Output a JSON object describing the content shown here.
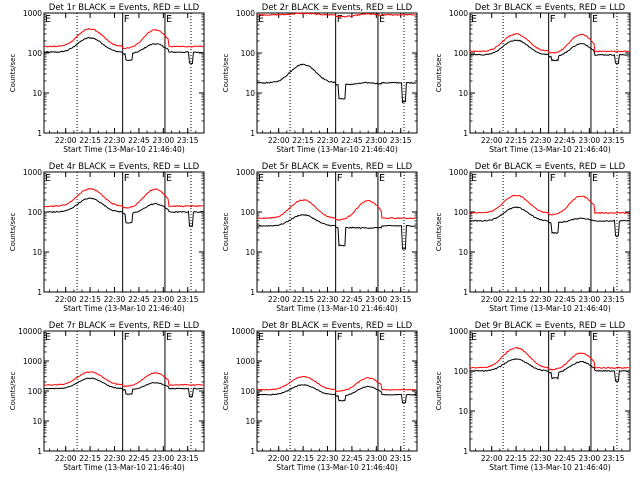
{
  "chart_data": [
    {
      "type": "line",
      "title": "Det 1r BLACK = Events, RED = LLD",
      "ylabel": "Counts/sec",
      "xlabel": "Start Time (13-Mar-10 21:46:40)",
      "x_ticks": [
        "22:00",
        "22:15",
        "22:30",
        "22:45",
        "23:00",
        "23:15"
      ],
      "y_ticks": [
        "1",
        "10",
        "100",
        "1000"
      ],
      "ylim": [
        1,
        1000
      ],
      "y_scale": "log",
      "event_markers": [
        "E",
        "F",
        "E"
      ],
      "series": [
        {
          "name": "Events",
          "color": "#000000",
          "baseline": 105,
          "peak1": 240,
          "peak2": 170,
          "dip": 55
        },
        {
          "name": "LLD",
          "color": "#ff0000",
          "baseline": 145,
          "peak1": 400,
          "peak2": 380
        }
      ]
    },
    {
      "type": "line",
      "title": "Det 2r BLACK = Events, RED = LLD",
      "ylabel": "Counts/sec",
      "xlabel": "Start Time (13-Mar-10 21:46:40)",
      "x_ticks": [
        "22:00",
        "22:15",
        "22:30",
        "22:45",
        "23:00",
        "23:15"
      ],
      "y_ticks": [
        "1",
        "10",
        "100",
        "1000"
      ],
      "ylim": [
        1,
        1000
      ],
      "y_scale": "log",
      "event_markers": [
        "E",
        "F",
        "E"
      ],
      "series": [
        {
          "name": "Events",
          "color": "#000000",
          "baseline": 18,
          "peak1": 52,
          "peak2": 18,
          "dip": 6
        },
        {
          "name": "LLD",
          "color": "#ff0000",
          "baseline": 900,
          "peak1": 980,
          "peak2": 950
        }
      ]
    },
    {
      "type": "line",
      "title": "Det 3r BLACK = Events, RED = LLD",
      "ylabel": "Counts/sec",
      "xlabel": "Start Time (13-Mar-10 21:46:40)",
      "x_ticks": [
        "22:00",
        "22:15",
        "22:30",
        "22:45",
        "23:00",
        "23:15"
      ],
      "y_ticks": [
        "1",
        "10",
        "100",
        "1000"
      ],
      "ylim": [
        1,
        1000
      ],
      "y_scale": "log",
      "event_markers": [
        "E",
        "F",
        "E"
      ],
      "series": [
        {
          "name": "Events",
          "color": "#000000",
          "baseline": 90,
          "peak1": 210,
          "peak2": 170,
          "dip": 55
        },
        {
          "name": "LLD",
          "color": "#ff0000",
          "baseline": 110,
          "peak1": 300,
          "peak2": 290
        }
      ]
    },
    {
      "type": "line",
      "title": "Det 4r BLACK = Events, RED = LLD",
      "ylabel": "Counts/sec",
      "xlabel": "Start Time (13-Mar-10 21:46:40)",
      "x_ticks": [
        "22:00",
        "22:15",
        "22:30",
        "22:45",
        "23:00",
        "23:15"
      ],
      "y_ticks": [
        "1",
        "10",
        "100",
        "1000"
      ],
      "ylim": [
        1,
        1000
      ],
      "y_scale": "log",
      "event_markers": [
        "E",
        "F",
        "E"
      ],
      "series": [
        {
          "name": "Events",
          "color": "#000000",
          "baseline": 100,
          "peak1": 220,
          "peak2": 160,
          "dip": 45
        },
        {
          "name": "LLD",
          "color": "#ff0000",
          "baseline": 140,
          "peak1": 380,
          "peak2": 370
        }
      ]
    },
    {
      "type": "line",
      "title": "Det 5r BLACK = Events, RED = LLD",
      "ylabel": "Counts/sec",
      "xlabel": "Start Time (13-Mar-10 21:46:40)",
      "x_ticks": [
        "22:00",
        "22:15",
        "22:30",
        "22:45",
        "23:00",
        "23:15"
      ],
      "y_ticks": [
        "1",
        "10",
        "100",
        "1000"
      ],
      "ylim": [
        1,
        1000
      ],
      "y_scale": "log",
      "event_markers": [
        "E",
        "F",
        "E"
      ],
      "series": [
        {
          "name": "Events",
          "color": "#000000",
          "baseline": 45,
          "peak1": 85,
          "peak2": 40,
          "dip": 12
        },
        {
          "name": "LLD",
          "color": "#ff0000",
          "baseline": 70,
          "peak1": 200,
          "peak2": 190
        }
      ]
    },
    {
      "type": "line",
      "title": "Det 6r BLACK = Events, RED = LLD",
      "ylabel": "Counts/sec",
      "xlabel": "Start Time (13-Mar-10 21:46:40)",
      "x_ticks": [
        "22:00",
        "22:15",
        "22:30",
        "22:45",
        "23:00",
        "23:15"
      ],
      "y_ticks": [
        "1",
        "10",
        "100",
        "1000"
      ],
      "ylim": [
        1,
        1000
      ],
      "y_scale": "log",
      "event_markers": [
        "E",
        "F",
        "E"
      ],
      "series": [
        {
          "name": "Events",
          "color": "#000000",
          "baseline": 60,
          "peak1": 130,
          "peak2": 70,
          "dip": 25
        },
        {
          "name": "LLD",
          "color": "#ff0000",
          "baseline": 95,
          "peak1": 260,
          "peak2": 250
        }
      ]
    },
    {
      "type": "line",
      "title": "Det 7r BLACK = Events, RED = LLD",
      "ylabel": "Counts/sec",
      "xlabel": "Start Time (13-Mar-10 21:46:40)",
      "x_ticks": [
        "22:00",
        "22:15",
        "22:30",
        "22:45",
        "23:00",
        "23:15"
      ],
      "y_ticks": [
        "1",
        "10",
        "100",
        "1000",
        "10000"
      ],
      "ylim": [
        1,
        10000
      ],
      "y_scale": "log",
      "event_markers": [
        "E",
        "F",
        "E"
      ],
      "series": [
        {
          "name": "Events",
          "color": "#000000",
          "baseline": 120,
          "peak1": 270,
          "peak2": 190,
          "dip": 65
        },
        {
          "name": "LLD",
          "color": "#ff0000",
          "baseline": 160,
          "peak1": 430,
          "peak2": 400
        }
      ]
    },
    {
      "type": "line",
      "title": "Det 8r BLACK = Events, RED = LLD",
      "ylabel": "Counts/sec",
      "xlabel": "Start Time (13-Mar-10 21:46:40)",
      "x_ticks": [
        "22:00",
        "22:15",
        "22:30",
        "22:45",
        "23:00",
        "23:15"
      ],
      "y_ticks": [
        "1",
        "10",
        "100",
        "1000",
        "10000"
      ],
      "ylim": [
        1,
        10000
      ],
      "y_scale": "log",
      "event_markers": [
        "E",
        "F",
        "E"
      ],
      "series": [
        {
          "name": "Events",
          "color": "#000000",
          "baseline": 75,
          "peak1": 160,
          "peak2": 140,
          "dip": 40
        },
        {
          "name": "LLD",
          "color": "#ff0000",
          "baseline": 110,
          "peak1": 300,
          "peak2": 270
        }
      ]
    },
    {
      "type": "line",
      "title": "Det 9r BLACK = Events, RED = LLD",
      "ylabel": "Counts/sec",
      "xlabel": "Start Time (13-Mar-10 21:46:40)",
      "x_ticks": [
        "22:00",
        "22:15",
        "22:30",
        "22:45",
        "23:00",
        "23:15"
      ],
      "y_ticks": [
        "1",
        "10",
        "100",
        "1000"
      ],
      "ylim": [
        1,
        1000
      ],
      "y_scale": "log",
      "event_markers": [
        "E",
        "F",
        "E"
      ],
      "series": [
        {
          "name": "Events",
          "color": "#000000",
          "baseline": 100,
          "peak1": 200,
          "peak2": 170,
          "dip": 55
        },
        {
          "name": "LLD",
          "color": "#ff0000",
          "baseline": 120,
          "peak1": 380,
          "peak2": 280
        }
      ]
    }
  ]
}
